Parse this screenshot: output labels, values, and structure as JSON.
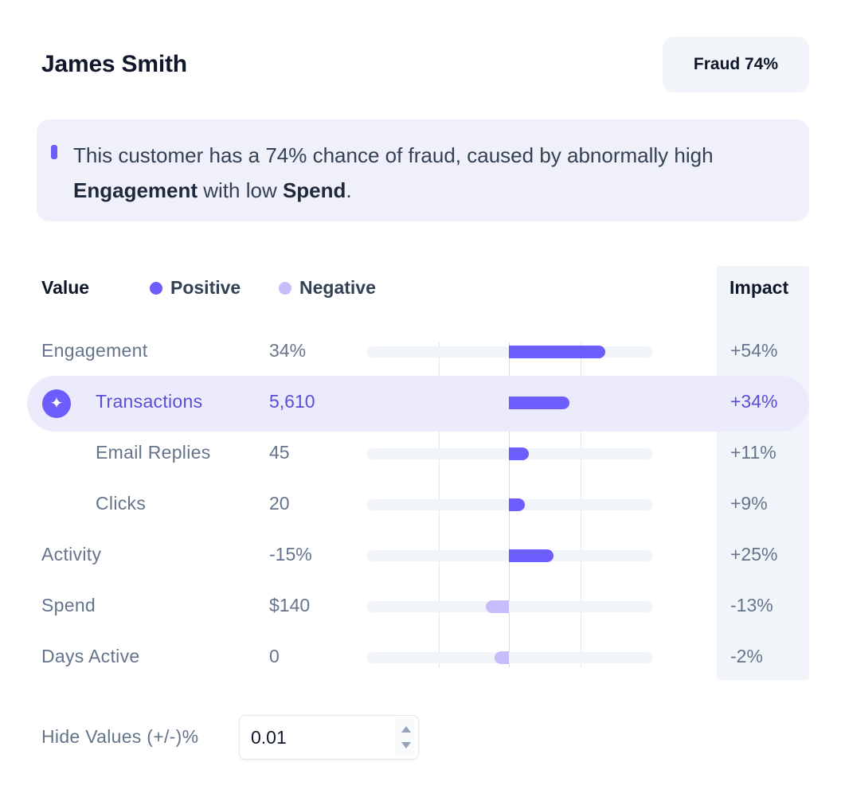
{
  "header": {
    "name": "James Smith",
    "badge": "Fraud 74%"
  },
  "callout": {
    "text_1": "This customer has a 74% chance of fraud, caused by abnormally high ",
    "bold_1": "Engagement",
    "text_2": " with low ",
    "bold_2": "Spend",
    "text_3": "."
  },
  "table": {
    "value_header": "Value",
    "impact_header": "Impact",
    "legend": [
      {
        "label": "Positive",
        "color": "#6d5dfc"
      },
      {
        "label": "Negative",
        "color": "#c4bdfa"
      }
    ],
    "scale_max_percent": 100,
    "rows": [
      {
        "label": "Engagement",
        "value": "34%",
        "impact": "+54%",
        "impact_value": 54,
        "indent": false,
        "highlighted": false
      },
      {
        "label": "Transactions",
        "value": "5,610",
        "impact": "+34%",
        "impact_value": 34,
        "indent": true,
        "highlighted": true
      },
      {
        "label": "Email Replies",
        "value": "45",
        "impact": "+11%",
        "impact_value": 11,
        "indent": true,
        "highlighted": false
      },
      {
        "label": "Clicks",
        "value": "20",
        "impact": "+9%",
        "impact_value": 9,
        "indent": true,
        "highlighted": false
      },
      {
        "label": "Activity",
        "value": "-15%",
        "impact": "+25%",
        "impact_value": 25,
        "indent": false,
        "highlighted": false
      },
      {
        "label": "Spend",
        "value": "$140",
        "impact": "-13%",
        "impact_value": -13,
        "indent": false,
        "highlighted": false
      },
      {
        "label": "Days Active",
        "value": "0",
        "impact": "-2%",
        "impact_value": -2,
        "indent": false,
        "highlighted": false
      }
    ]
  },
  "filter": {
    "label": "Hide Values (+/-)%",
    "value": "0.01"
  },
  "icons": {
    "highlight": "sparkle-icon",
    "stepper_up": "chevron-up-icon",
    "stepper_down": "chevron-down-icon"
  }
}
